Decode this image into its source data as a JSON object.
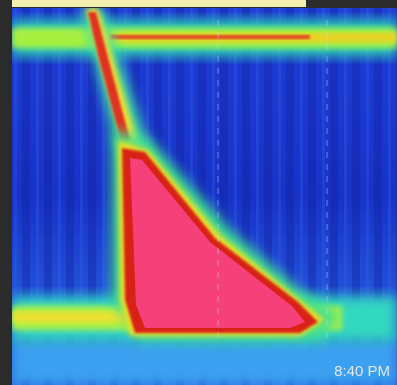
{
  "timestamp": "8:40 PM"
}
